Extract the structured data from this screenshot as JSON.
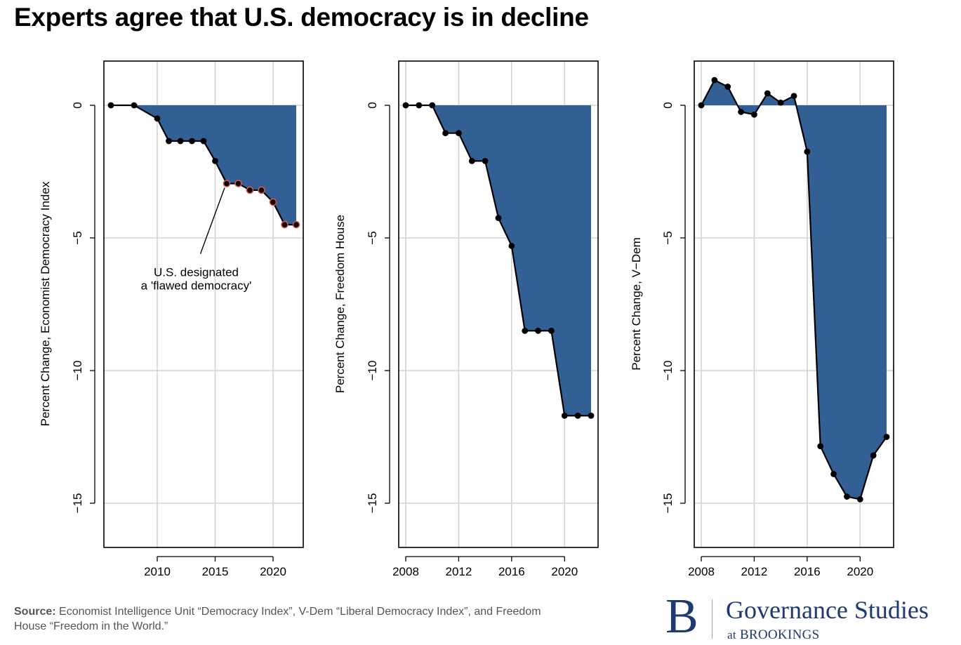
{
  "title": "Experts agree that U.S. democracy is in decline",
  "source": {
    "label": "Source:",
    "text": " Economist Intelligence Unit “Democracy Index”, V-Dem “Liberal Democracy Index”, and Freedom House “Freedom in the World.”"
  },
  "logo": {
    "letter": "B",
    "name": "Governance Studies",
    "at": "at",
    "org": "BROOKINGS"
  },
  "colors": {
    "fill": "#336094",
    "line": "#000000",
    "highlight": "#d9534f",
    "grid": "#d3d3d3"
  },
  "chart_data": [
    {
      "type": "area",
      "ylabel": "Percent Change, Economist Democracy Index",
      "xlim": [
        2006,
        2022
      ],
      "ylim": [
        -16.5,
        1.5
      ],
      "xticks": [
        2010,
        2015,
        2020
      ],
      "yticks": [
        0,
        -5,
        -10,
        -15
      ],
      "fill_from_x": 2008,
      "x": [
        2006,
        2008,
        2010,
        2011,
        2012,
        2013,
        2014,
        2015,
        2016,
        2017,
        2018,
        2019,
        2020,
        2021,
        2022
      ],
      "y": [
        0,
        0,
        -0.5,
        -1.35,
        -1.35,
        -1.35,
        -1.35,
        -2.1,
        -2.95,
        -2.95,
        -3.2,
        -3.2,
        -3.65,
        -4.5,
        -4.5
      ],
      "highlight_from_x": 2016,
      "annotation": {
        "lines": [
          "U.S. designated",
          "a 'flawed democracy'"
        ],
        "points_to": [
          2016,
          -2.95
        ],
        "text_at": [
          2013,
          -6.5
        ]
      }
    },
    {
      "type": "area",
      "ylabel": "Percent Change, Freedom House",
      "xlim": [
        2008,
        2022
      ],
      "ylim": [
        -16.5,
        1.5
      ],
      "xticks": [
        2008,
        2012,
        2016,
        2020
      ],
      "yticks": [
        0,
        -5,
        -10,
        -15
      ],
      "fill_from_x": 2010,
      "x": [
        2008,
        2009,
        2010,
        2011,
        2012,
        2013,
        2014,
        2015,
        2016,
        2017,
        2018,
        2019,
        2020,
        2021,
        2022
      ],
      "y": [
        0,
        0,
        0,
        -1.05,
        -1.05,
        -2.1,
        -2.1,
        -4.25,
        -5.3,
        -8.5,
        -8.5,
        -8.5,
        -11.7,
        -11.7,
        -11.7
      ]
    },
    {
      "type": "area",
      "ylabel": "Percent Change, V−Dem",
      "xlim": [
        2008,
        2022
      ],
      "ylim": [
        -16.5,
        1.5
      ],
      "xticks": [
        2008,
        2012,
        2016,
        2020
      ],
      "yticks": [
        0,
        -5,
        -10,
        -15
      ],
      "fill_from_x": 2008,
      "x": [
        2008,
        2009,
        2010,
        2011,
        2012,
        2013,
        2014,
        2015,
        2016,
        2017,
        2018,
        2019,
        2020,
        2021,
        2022
      ],
      "y": [
        0,
        0.95,
        0.7,
        -0.25,
        -0.35,
        0.45,
        0.1,
        0.35,
        -1.75,
        -12.85,
        -13.9,
        -14.75,
        -14.85,
        -13.2,
        -12.5
      ]
    }
  ]
}
